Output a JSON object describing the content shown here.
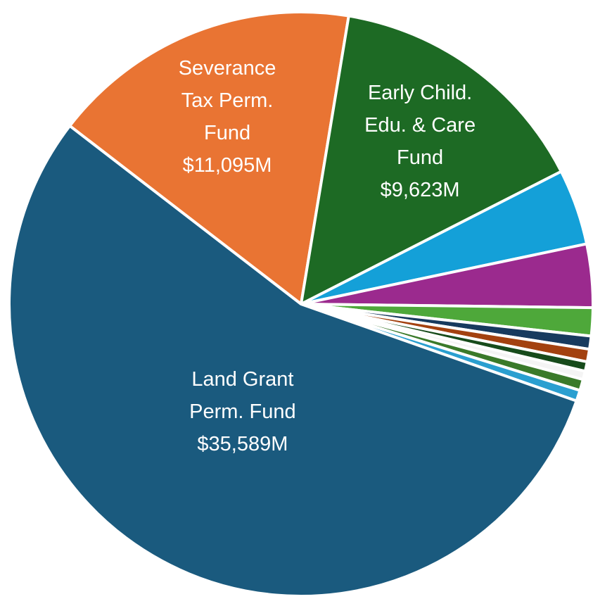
{
  "chart_data": {
    "type": "pie",
    "categories": [
      "Severance\nTax Perm.\nFund",
      "Early Child.\nEdu. & Care\nFund",
      null,
      null,
      null,
      null,
      null,
      null,
      null,
      null,
      null,
      "Land Grant\nPerm. Fund"
    ],
    "values": [
      11095,
      9623,
      2711,
      2262,
      1005,
      467,
      449,
      341,
      300,
      400,
      389,
      35589
    ],
    "value_labels": [
      "$11,095M",
      "$9,623M",
      null,
      null,
      null,
      null,
      null,
      null,
      null,
      null,
      null,
      "$35,589M"
    ],
    "colors": [
      "#e97433",
      "#1d6a24",
      "#14a0d8",
      "#9b2a8e",
      "#4ea83a",
      "#173a5e",
      "#a3410f",
      "#174b1b",
      "#f4f4f4",
      "#3a7a2a",
      "#2a9fd0",
      "#1a5a7e"
    ]
  }
}
